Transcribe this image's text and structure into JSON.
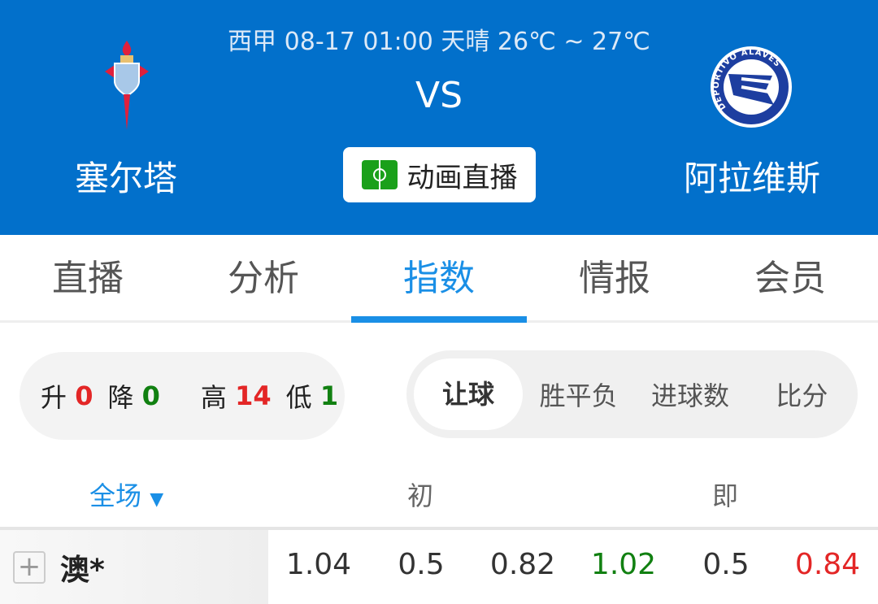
{
  "header": {
    "match_info": "西甲 08-17 01:00 天晴 26℃ ~ 27℃",
    "vs": "VS",
    "home_team": "塞尔塔",
    "away_team": "阿拉维斯",
    "live_button": "动画直播",
    "home_logo": "celta-crest",
    "away_logo_text": "DEPORTIVO ALAVÉS"
  },
  "tabs": [
    {
      "label": "直播"
    },
    {
      "label": "分析"
    },
    {
      "label": "指数",
      "active": true
    },
    {
      "label": "情报"
    },
    {
      "label": "会员"
    }
  ],
  "stats": {
    "up_label": "升",
    "up": "0",
    "down_label": "降",
    "down": "0",
    "high_label": "高",
    "high": "14",
    "low_label": "低",
    "low": "1"
  },
  "segments": [
    {
      "label": "让球",
      "active": true
    },
    {
      "label": "胜平负"
    },
    {
      "label": "进球数"
    },
    {
      "label": "比分"
    }
  ],
  "columns": {
    "period": "全场",
    "initial": "初",
    "live": "即"
  },
  "rows": [
    {
      "company": "澳*",
      "values": [
        "1.04",
        "0.5",
        "0.82",
        "1.02",
        "0.5",
        "0.84"
      ]
    }
  ],
  "colors": {
    "accent": "#0270cb",
    "up": "#e32626",
    "down": "#118011"
  }
}
